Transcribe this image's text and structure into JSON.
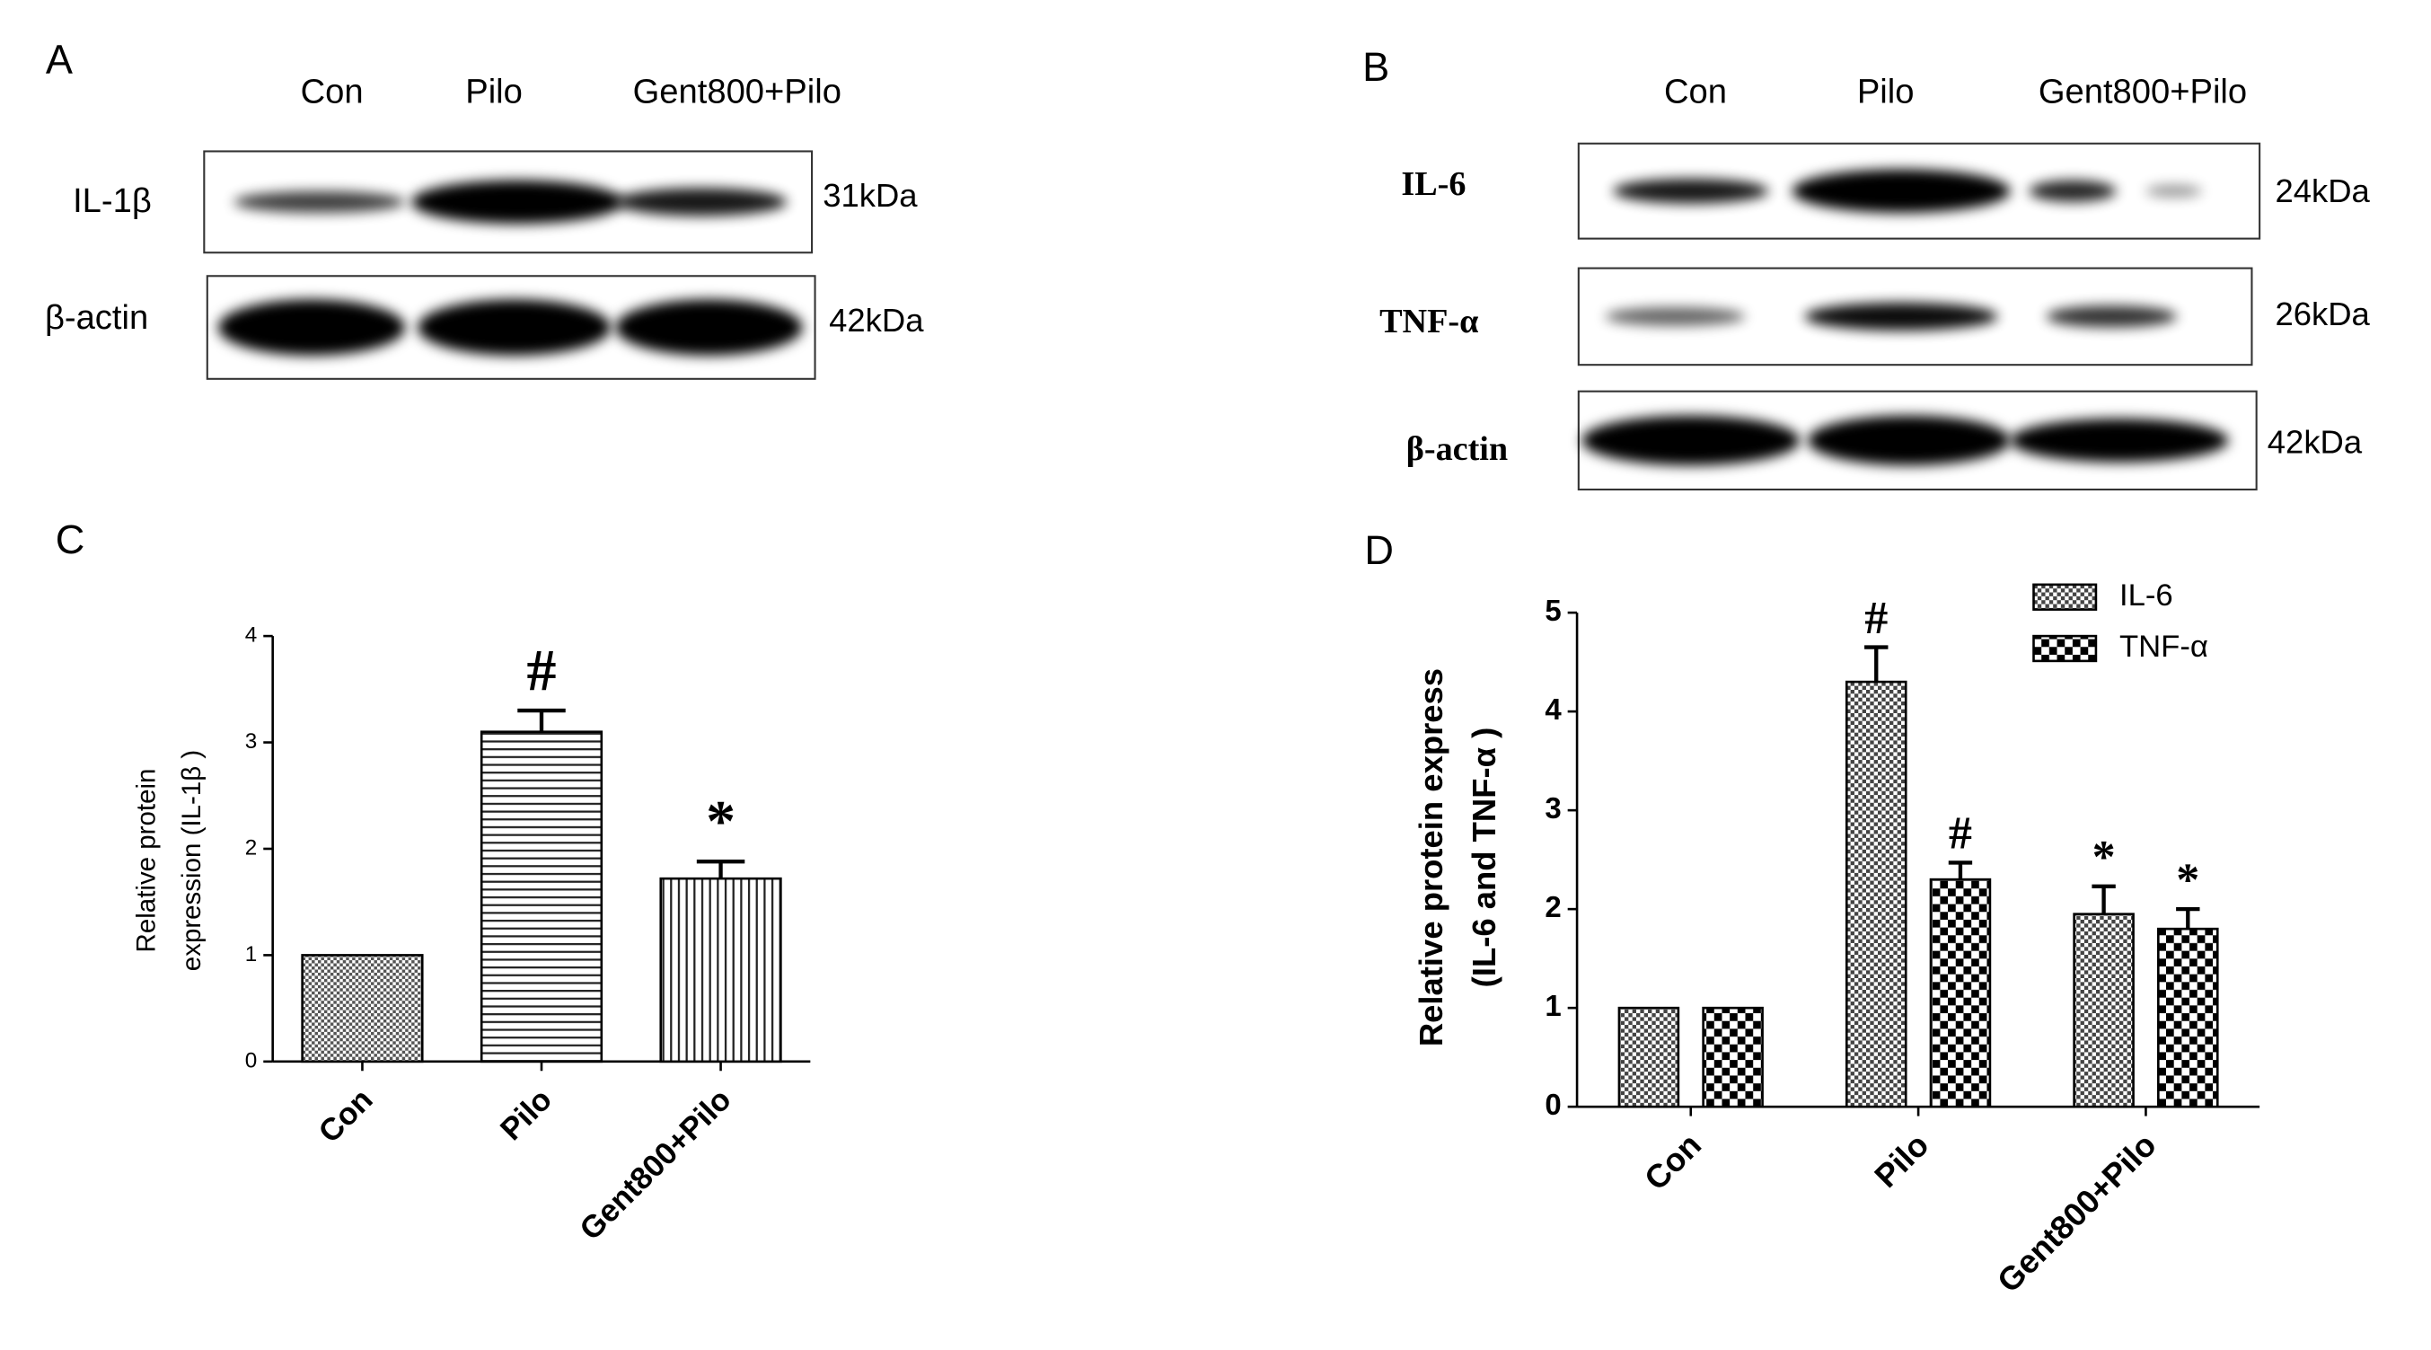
{
  "blots": [
    {
      "panel_label": "A",
      "lanes": [
        "Con",
        "Pilo",
        "Gent800+Pilo"
      ],
      "rows": [
        {
          "protein": "IL-1β",
          "size": "31kDa"
        },
        {
          "protein": "β-actin",
          "size": "42kDa"
        }
      ]
    },
    {
      "panel_label": "B",
      "lanes": [
        "Con",
        "Pilo",
        "Gent800+Pilo"
      ],
      "rows": [
        {
          "protein": "IL-6",
          "size": "24kDa"
        },
        {
          "protein": "TNF-α",
          "size": "26kDa"
        },
        {
          "protein": "β-actin",
          "size": "42kDa"
        }
      ]
    }
  ],
  "chart_data": [
    {
      "type": "bar",
      "panel_label": "C",
      "ylabel": [
        "Relative protein",
        "expression (IL-1β )"
      ],
      "categories": [
        "Con",
        "Pilo",
        "Gent800+Pilo"
      ],
      "values": [
        1,
        3.1,
        1.72
      ],
      "errors": [
        0,
        0.2,
        0.16
      ],
      "annotations": [
        null,
        "#",
        "*"
      ],
      "patterns": [
        "dots",
        "hlines",
        "vlines"
      ],
      "color": "#000000",
      "ylim": [
        0,
        4
      ],
      "yticks": [
        0,
        1,
        2,
        3,
        4
      ]
    },
    {
      "type": "grouped-bar",
      "panel_label": "D",
      "ylabel": [
        "Relative protein express",
        "(IL-6 and TNF-α )"
      ],
      "categories": [
        "Con",
        "Pilo",
        "Gent800+Pilo"
      ],
      "series": [
        {
          "name": "IL-6",
          "pattern": "checker-fine",
          "color": "#000000",
          "values": [
            1,
            4.3,
            1.95
          ],
          "errors": [
            0,
            0.35,
            0.28
          ],
          "annotations": [
            null,
            "#",
            "*"
          ]
        },
        {
          "name": "TNF-α",
          "pattern": "checker",
          "color": "#000000",
          "values": [
            1,
            2.3,
            1.8
          ],
          "errors": [
            0,
            0.17,
            0.2
          ],
          "annotations": [
            null,
            "#",
            "*"
          ]
        }
      ],
      "ylim": [
        0,
        5
      ],
      "yticks": [
        0,
        1,
        2,
        3,
        4,
        5
      ],
      "legend": "top-right"
    }
  ]
}
